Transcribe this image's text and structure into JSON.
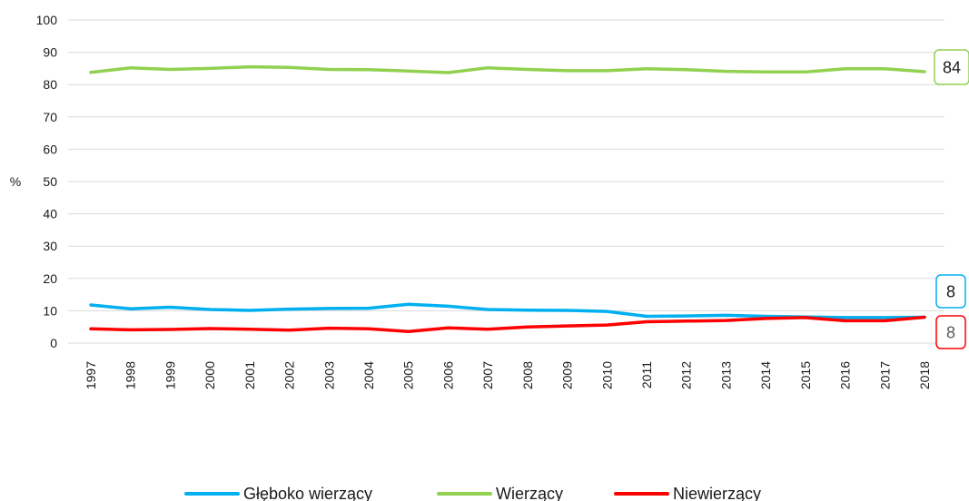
{
  "chart_data": {
    "type": "line",
    "ylabel": "%",
    "xlabel": "",
    "ylim": [
      0,
      100
    ],
    "yticks": [
      0,
      10,
      20,
      30,
      40,
      50,
      60,
      70,
      80,
      90,
      100
    ],
    "grid": true,
    "legend_position": "bottom",
    "categories": [
      "1997",
      "1998",
      "1999",
      "2000",
      "2001",
      "2002",
      "2003",
      "2004",
      "2005",
      "2006",
      "2007",
      "2008",
      "2009",
      "2010",
      "2011",
      "2012",
      "2013",
      "2014",
      "2015",
      "2016",
      "2017",
      "2018"
    ],
    "series": [
      {
        "name": "Głęboko wierzący",
        "color": "#00b0f0",
        "values": [
          11.8,
          10.6,
          11.1,
          10.4,
          10.1,
          10.5,
          10.7,
          10.8,
          12.0,
          11.4,
          10.4,
          10.2,
          10.1,
          9.8,
          8.3,
          8.4,
          8.6,
          8.3,
          8.1,
          7.9,
          7.9,
          8.0
        ],
        "end_label": "8"
      },
      {
        "name": "Wierzący",
        "color": "#92d050",
        "values": [
          83.8,
          85.2,
          84.7,
          85.0,
          85.5,
          85.3,
          84.7,
          84.6,
          84.2,
          83.7,
          85.2,
          84.7,
          84.3,
          84.3,
          84.9,
          84.6,
          84.1,
          83.9,
          83.9,
          84.9,
          84.9,
          84.0
        ],
        "end_label": "84"
      },
      {
        "name": "Niewierzący",
        "color": "#ff0000",
        "values": [
          4.4,
          4.1,
          4.2,
          4.5,
          4.3,
          4.0,
          4.6,
          4.4,
          3.6,
          4.7,
          4.3,
          5.0,
          5.3,
          5.6,
          6.6,
          6.8,
          7.0,
          7.6,
          7.9,
          6.9,
          6.9,
          8.0
        ],
        "end_label": "8",
        "end_label_text_color": "#595959"
      }
    ]
  }
}
